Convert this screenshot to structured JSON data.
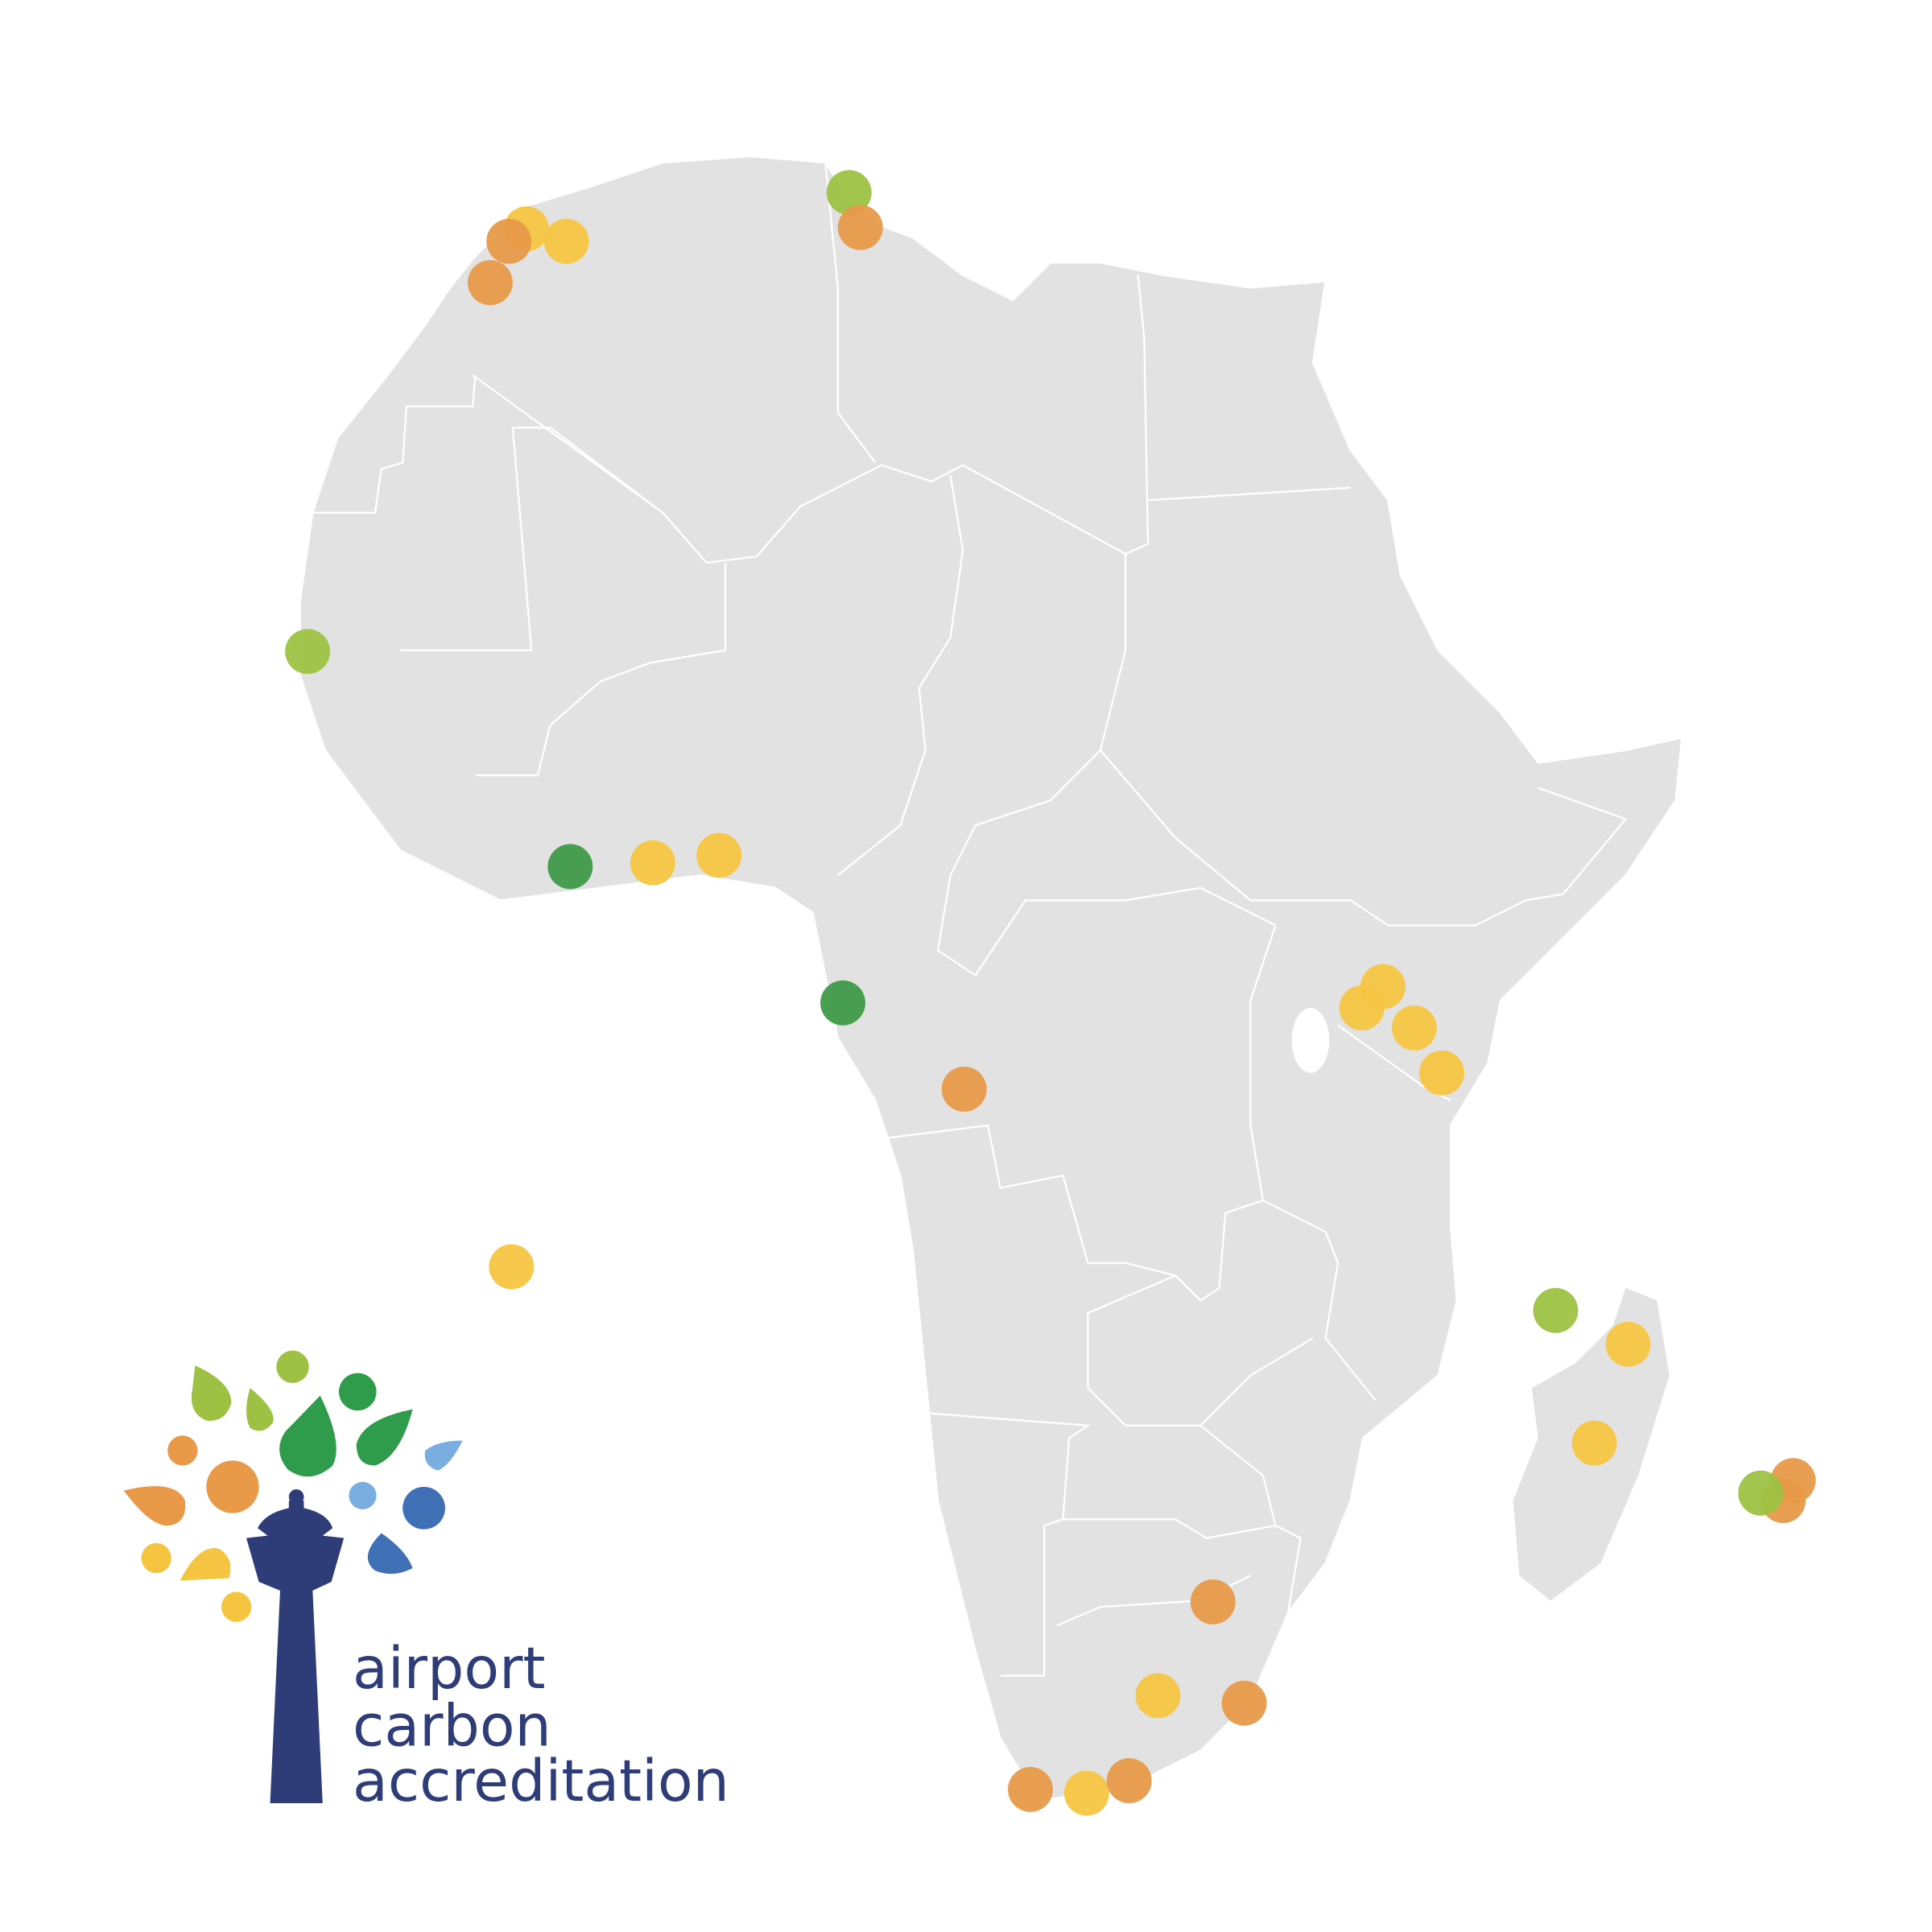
{
  "logo": {
    "lines": [
      "airport",
      "carbon",
      "accreditation"
    ]
  }
}
